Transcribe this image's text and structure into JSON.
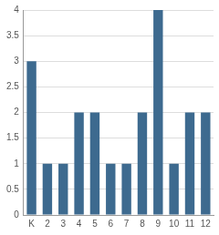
{
  "chart_data": {
    "type": "bar",
    "categories": [
      "K",
      "2",
      "3",
      "4",
      "5",
      "6",
      "7",
      "8",
      "9",
      "10",
      "11",
      "12"
    ],
    "values": [
      3,
      1,
      1,
      2,
      2,
      1,
      1,
      2,
      4,
      1,
      2,
      2
    ],
    "color": "#3d6a8f",
    "ylim": [
      0,
      4
    ],
    "yticks": [
      0,
      0.5,
      1,
      1.5,
      2,
      2.5,
      3,
      3.5,
      4
    ],
    "grid": true
  }
}
